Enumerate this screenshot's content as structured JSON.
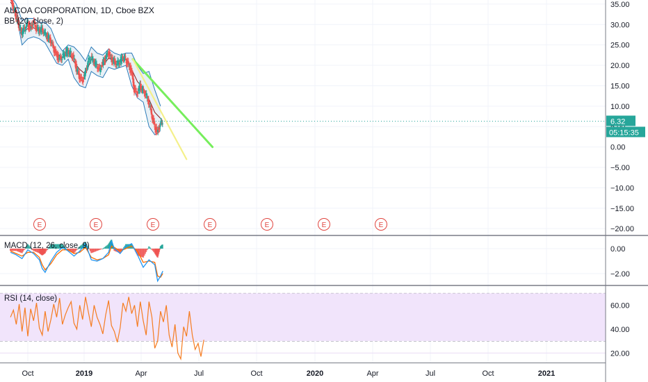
{
  "legend": {
    "title": "ALCOA CORPORATION, 1D, Cboe BZX",
    "bb": "BB (20, close, 2)",
    "macd": "MACD (12, 26, close, 9)",
    "rsi": "RSI (14, close)"
  },
  "colors": {
    "price_up": "#26a69a",
    "price_down": "#ef5350",
    "bb_bands": "#2a7ab8",
    "bb_basis": "#8b1a1a",
    "bb_fill": "#e6eef5",
    "trend_green": "#76ee5c",
    "trend_yellow": "#f4f08a",
    "macd_line": "#2196f3",
    "signal_line": "#ff6d00",
    "rsi_line": "#f57c20",
    "rsi_band": "#f1e4fb",
    "earnings": "#e0443e",
    "last_price": "#26a69a"
  },
  "chart_data": [
    {
      "type": "line",
      "title": "ALCOA CORPORATION, 1D, Cboe BZX",
      "x_ticks": [
        "Oct",
        "2019",
        "Apr",
        "Jul",
        "Oct",
        "2020",
        "Apr",
        "Jul",
        "Oct",
        "2021"
      ],
      "x_ticks_bold": [
        "2019",
        "2020",
        "2021"
      ],
      "y_ticks": [
        "35.00",
        "30.00",
        "25.00",
        "20.00",
        "15.00",
        "10.00",
        "5.00",
        "0.00",
        "−5.00",
        "−10.00",
        "−15.00",
        "−20.00"
      ],
      "y_values": [
        35,
        30,
        25,
        20,
        15,
        10,
        5,
        0,
        -5,
        -10,
        -15,
        -20
      ],
      "ylim": [
        -21.5,
        36
      ],
      "last_price": "6.32",
      "countdown": "05:15:35",
      "earnings_marker": "E",
      "earnings_count": 7,
      "bollinger": {
        "length": 20,
        "source": "close",
        "mult": 2
      },
      "price_path": [
        [
          0,
          37
        ],
        [
          0.04,
          34.5
        ],
        [
          0.08,
          33
        ],
        [
          0.12,
          31
        ],
        [
          0.16,
          29.5
        ],
        [
          0.2,
          28
        ],
        [
          0.25,
          29
        ],
        [
          0.3,
          30
        ],
        [
          0.35,
          29
        ],
        [
          0.4,
          30.5
        ],
        [
          0.45,
          29
        ],
        [
          0.5,
          28.5
        ],
        [
          0.55,
          29
        ],
        [
          0.6,
          28
        ],
        [
          0.65,
          27
        ],
        [
          0.7,
          26
        ],
        [
          0.75,
          24
        ],
        [
          0.8,
          22.5
        ],
        [
          0.85,
          21.5
        ],
        [
          0.9,
          22
        ],
        [
          0.95,
          23
        ],
        [
          1.0,
          23.5
        ],
        [
          1.05,
          23
        ],
        [
          1.1,
          22
        ],
        [
          1.15,
          19
        ],
        [
          1.2,
          17
        ],
        [
          1.25,
          16
        ],
        [
          1.3,
          18
        ],
        [
          1.35,
          21
        ],
        [
          1.4,
          22
        ],
        [
          1.45,
          21
        ],
        [
          1.5,
          20
        ],
        [
          1.55,
          19
        ],
        [
          1.6,
          20.5
        ],
        [
          1.65,
          21.5
        ],
        [
          1.7,
          23
        ],
        [
          1.75,
          21.5
        ],
        [
          1.8,
          21
        ],
        [
          1.85,
          20.5
        ],
        [
          1.9,
          21
        ],
        [
          1.95,
          22
        ],
        [
          2.0,
          21.5
        ],
        [
          2.05,
          20
        ],
        [
          2.1,
          18.5
        ],
        [
          2.15,
          14
        ],
        [
          2.2,
          13
        ],
        [
          2.25,
          15
        ],
        [
          2.3,
          14
        ],
        [
          2.35,
          13
        ],
        [
          2.4,
          11
        ],
        [
          2.45,
          8
        ],
        [
          2.5,
          5
        ],
        [
          2.55,
          3.5
        ],
        [
          2.6,
          5.5
        ],
        [
          2.64,
          6.32
        ]
      ],
      "bb_upper": [
        [
          0,
          37
        ],
        [
          0.1,
          35
        ],
        [
          0.2,
          31
        ],
        [
          0.3,
          31.5
        ],
        [
          0.4,
          31.5
        ],
        [
          0.5,
          30.5
        ],
        [
          0.6,
          30.5
        ],
        [
          0.7,
          29
        ],
        [
          0.8,
          25.5
        ],
        [
          0.9,
          23.5
        ],
        [
          1.0,
          25
        ],
        [
          1.1,
          24.5
        ],
        [
          1.2,
          23
        ],
        [
          1.3,
          21
        ],
        [
          1.4,
          24.5
        ],
        [
          1.5,
          23
        ],
        [
          1.6,
          22.5
        ],
        [
          1.7,
          24
        ],
        [
          1.8,
          23
        ],
        [
          1.9,
          22.5
        ],
        [
          2.0,
          23
        ],
        [
          2.1,
          23
        ],
        [
          2.2,
          20
        ],
        [
          2.3,
          18
        ],
        [
          2.4,
          18.5
        ],
        [
          2.5,
          14
        ],
        [
          2.6,
          10
        ]
      ],
      "bb_lower": [
        [
          0,
          34
        ],
        [
          0.1,
          32.5
        ],
        [
          0.2,
          25
        ],
        [
          0.3,
          26.5
        ],
        [
          0.4,
          27
        ],
        [
          0.5,
          26.5
        ],
        [
          0.6,
          25.5
        ],
        [
          0.7,
          23
        ],
        [
          0.8,
          20.5
        ],
        [
          0.9,
          20
        ],
        [
          1.0,
          21.5
        ],
        [
          1.1,
          17
        ],
        [
          1.2,
          15
        ],
        [
          1.3,
          14.5
        ],
        [
          1.4,
          18.5
        ],
        [
          1.5,
          17.5
        ],
        [
          1.6,
          17
        ],
        [
          1.7,
          19.5
        ],
        [
          1.8,
          19
        ],
        [
          1.9,
          19.5
        ],
        [
          2.0,
          20
        ],
        [
          2.1,
          15
        ],
        [
          2.2,
          12
        ],
        [
          2.3,
          11
        ],
        [
          2.4,
          5
        ],
        [
          2.5,
          3
        ],
        [
          2.6,
          4
        ]
      ],
      "bb_basis": [
        [
          0,
          35.5
        ],
        [
          0.1,
          33.5
        ],
        [
          0.2,
          28
        ],
        [
          0.3,
          29
        ],
        [
          0.4,
          29.2
        ],
        [
          0.5,
          28.5
        ],
        [
          0.6,
          28
        ],
        [
          0.7,
          26
        ],
        [
          0.8,
          23
        ],
        [
          0.9,
          21.8
        ],
        [
          1.0,
          23.2
        ],
        [
          1.1,
          20.8
        ],
        [
          1.2,
          19
        ],
        [
          1.3,
          17.8
        ],
        [
          1.4,
          21.5
        ],
        [
          1.5,
          20.3
        ],
        [
          1.6,
          19.8
        ],
        [
          1.7,
          21.8
        ],
        [
          1.8,
          21
        ],
        [
          1.9,
          21
        ],
        [
          2.0,
          21.5
        ],
        [
          2.1,
          19
        ],
        [
          2.2,
          16
        ],
        [
          2.3,
          14.5
        ],
        [
          2.4,
          11.7
        ],
        [
          2.5,
          8.5
        ],
        [
          2.6,
          7
        ]
      ],
      "trendlines": [
        {
          "color": "green",
          "from": [
            2.12,
            21.5
          ],
          "to": [
            3.5,
            0
          ]
        },
        {
          "color": "yellow",
          "from": [
            2.12,
            21.5
          ],
          "to": [
            3.05,
            -3
          ]
        }
      ]
    },
    {
      "type": "line",
      "title": "MACD (12, 26, close, 9)",
      "y_ticks": [
        "0.00",
        "−2.00"
      ],
      "y_values": [
        0,
        -2
      ],
      "ylim": [
        -2.9,
        1
      ],
      "macd": [
        [
          0,
          -0.3
        ],
        [
          0.1,
          -0.5
        ],
        [
          0.2,
          -0.8
        ],
        [
          0.3,
          -0.1
        ],
        [
          0.4,
          -0.4
        ],
        [
          0.5,
          -0.9
        ],
        [
          0.55,
          -1.6
        ],
        [
          0.6,
          -1.9
        ],
        [
          0.7,
          -1.0
        ],
        [
          0.8,
          -0.3
        ],
        [
          0.9,
          0.1
        ],
        [
          1.0,
          -0.2
        ],
        [
          1.1,
          -0.6
        ],
        [
          1.2,
          -0.2
        ],
        [
          1.3,
          0.4
        ],
        [
          1.4,
          -0.9
        ],
        [
          1.5,
          -1.0
        ],
        [
          1.6,
          -0.8
        ],
        [
          1.7,
          -0.3
        ],
        [
          1.75,
          0.6
        ],
        [
          1.8,
          0.0
        ],
        [
          1.9,
          -0.4
        ],
        [
          2.0,
          0.2
        ],
        [
          2.1,
          0.4
        ],
        [
          2.2,
          -0.5
        ],
        [
          2.3,
          -1.5
        ],
        [
          2.4,
          -0.9
        ],
        [
          2.5,
          -1.3
        ],
        [
          2.55,
          -2.6
        ],
        [
          2.6,
          -2.2
        ],
        [
          2.64,
          -1.8
        ]
      ],
      "signal": [
        [
          0,
          -0.2
        ],
        [
          0.1,
          -0.4
        ],
        [
          0.2,
          -0.6
        ],
        [
          0.3,
          -0.3
        ],
        [
          0.4,
          -0.3
        ],
        [
          0.5,
          -0.7
        ],
        [
          0.55,
          -1.3
        ],
        [
          0.6,
          -1.7
        ],
        [
          0.7,
          -1.2
        ],
        [
          0.8,
          -0.5
        ],
        [
          0.9,
          -0.1
        ],
        [
          1.0,
          -0.1
        ],
        [
          1.1,
          -0.4
        ],
        [
          1.2,
          -0.3
        ],
        [
          1.3,
          0.1
        ],
        [
          1.4,
          -0.7
        ],
        [
          1.5,
          -0.9
        ],
        [
          1.6,
          -0.8
        ],
        [
          1.7,
          -0.5
        ],
        [
          1.75,
          0.2
        ],
        [
          1.8,
          0.1
        ],
        [
          1.9,
          -0.2
        ],
        [
          2.0,
          0.0
        ],
        [
          2.1,
          0.2
        ],
        [
          2.2,
          -0.2
        ],
        [
          2.3,
          -1.1
        ],
        [
          2.4,
          -1.0
        ],
        [
          2.5,
          -1.1
        ],
        [
          2.55,
          -2.2
        ],
        [
          2.6,
          -2.3
        ],
        [
          2.64,
          -2.0
        ]
      ]
    },
    {
      "type": "line",
      "title": "RSI (14, close)",
      "y_ticks": [
        "60.00",
        "40.00",
        "20.00"
      ],
      "y_values": [
        60,
        40,
        20
      ],
      "ylim": [
        12,
        76
      ],
      "bands": [
        70,
        30
      ],
      "rsi": [
        [
          0,
          50
        ],
        [
          0.05,
          56
        ],
        [
          0.1,
          44
        ],
        [
          0.15,
          61
        ],
        [
          0.2,
          38
        ],
        [
          0.25,
          58
        ],
        [
          0.3,
          34
        ],
        [
          0.35,
          57
        ],
        [
          0.4,
          47
        ],
        [
          0.45,
          62
        ],
        [
          0.5,
          41
        ],
        [
          0.55,
          35
        ],
        [
          0.6,
          55
        ],
        [
          0.65,
          38
        ],
        [
          0.7,
          48
        ],
        [
          0.75,
          61
        ],
        [
          0.8,
          50
        ],
        [
          0.85,
          66
        ],
        [
          0.9,
          44
        ],
        [
          0.95,
          52
        ],
        [
          1.0,
          58
        ],
        [
          1.05,
          63
        ],
        [
          1.1,
          45
        ],
        [
          1.15,
          40
        ],
        [
          1.2,
          60
        ],
        [
          1.25,
          48
        ],
        [
          1.3,
          67
        ],
        [
          1.35,
          54
        ],
        [
          1.4,
          42
        ],
        [
          1.45,
          60
        ],
        [
          1.5,
          50
        ],
        [
          1.55,
          44
        ],
        [
          1.6,
          36
        ],
        [
          1.65,
          52
        ],
        [
          1.7,
          64
        ],
        [
          1.75,
          43
        ],
        [
          1.8,
          38
        ],
        [
          1.85,
          29
        ],
        [
          1.9,
          41
        ],
        [
          1.95,
          62
        ],
        [
          2.0,
          55
        ],
        [
          2.05,
          67
        ],
        [
          2.1,
          53
        ],
        [
          2.15,
          60
        ],
        [
          2.2,
          42
        ],
        [
          2.25,
          63
        ],
        [
          2.3,
          47
        ],
        [
          2.35,
          35
        ],
        [
          2.4,
          63
        ],
        [
          2.45,
          50
        ],
        [
          2.5,
          24
        ],
        [
          2.55,
          30
        ],
        [
          2.6,
          55
        ],
        [
          2.65,
          46
        ],
        [
          2.7,
          60
        ],
        [
          2.75,
          35
        ],
        [
          2.8,
          25
        ],
        [
          2.85,
          44
        ],
        [
          2.9,
          20
        ],
        [
          2.95,
          15
        ],
        [
          3.0,
          42
        ],
        [
          3.05,
          34
        ],
        [
          3.1,
          55
        ],
        [
          3.15,
          35
        ],
        [
          3.2,
          23
        ],
        [
          3.25,
          28
        ],
        [
          3.3,
          17
        ],
        [
          3.35,
          31
        ]
      ]
    }
  ]
}
